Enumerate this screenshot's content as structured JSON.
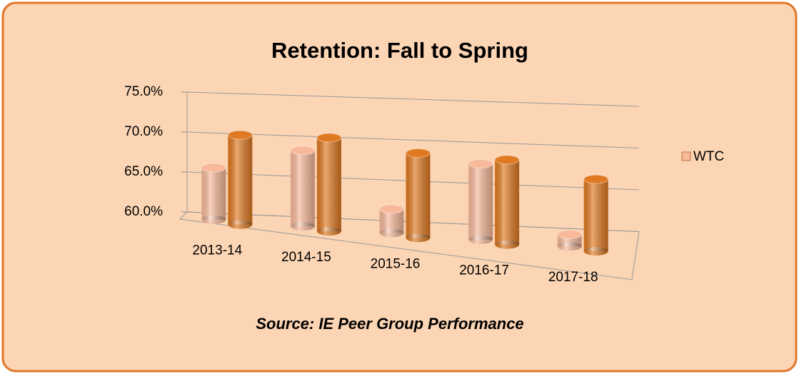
{
  "chart_data": {
    "type": "bar3d",
    "title": "Retention: Fall to Spring",
    "categories": [
      "2013-14",
      "2014-15",
      "2015-16",
      "2016-17",
      "2017-18"
    ],
    "series": [
      {
        "name": "WTC",
        "color": "#f7b99a",
        "values": [
          66.5,
          69.5,
          63.0,
          69.5,
          61.5
        ]
      },
      {
        "color": "#e07a22",
        "values": [
          71.2,
          71.7,
          70.6,
          70.6,
          69.0
        ]
      }
    ],
    "ylim": [
      60,
      75
    ],
    "yticks": [
      {
        "value": 60,
        "label": "60.0%"
      },
      {
        "value": 65,
        "label": "65.0%"
      },
      {
        "value": 70,
        "label": "70.0%"
      },
      {
        "value": 75,
        "label": "75.0%"
      }
    ],
    "grid": true,
    "legend": "right",
    "annotation": "Source: IE Peer Group Performance"
  }
}
